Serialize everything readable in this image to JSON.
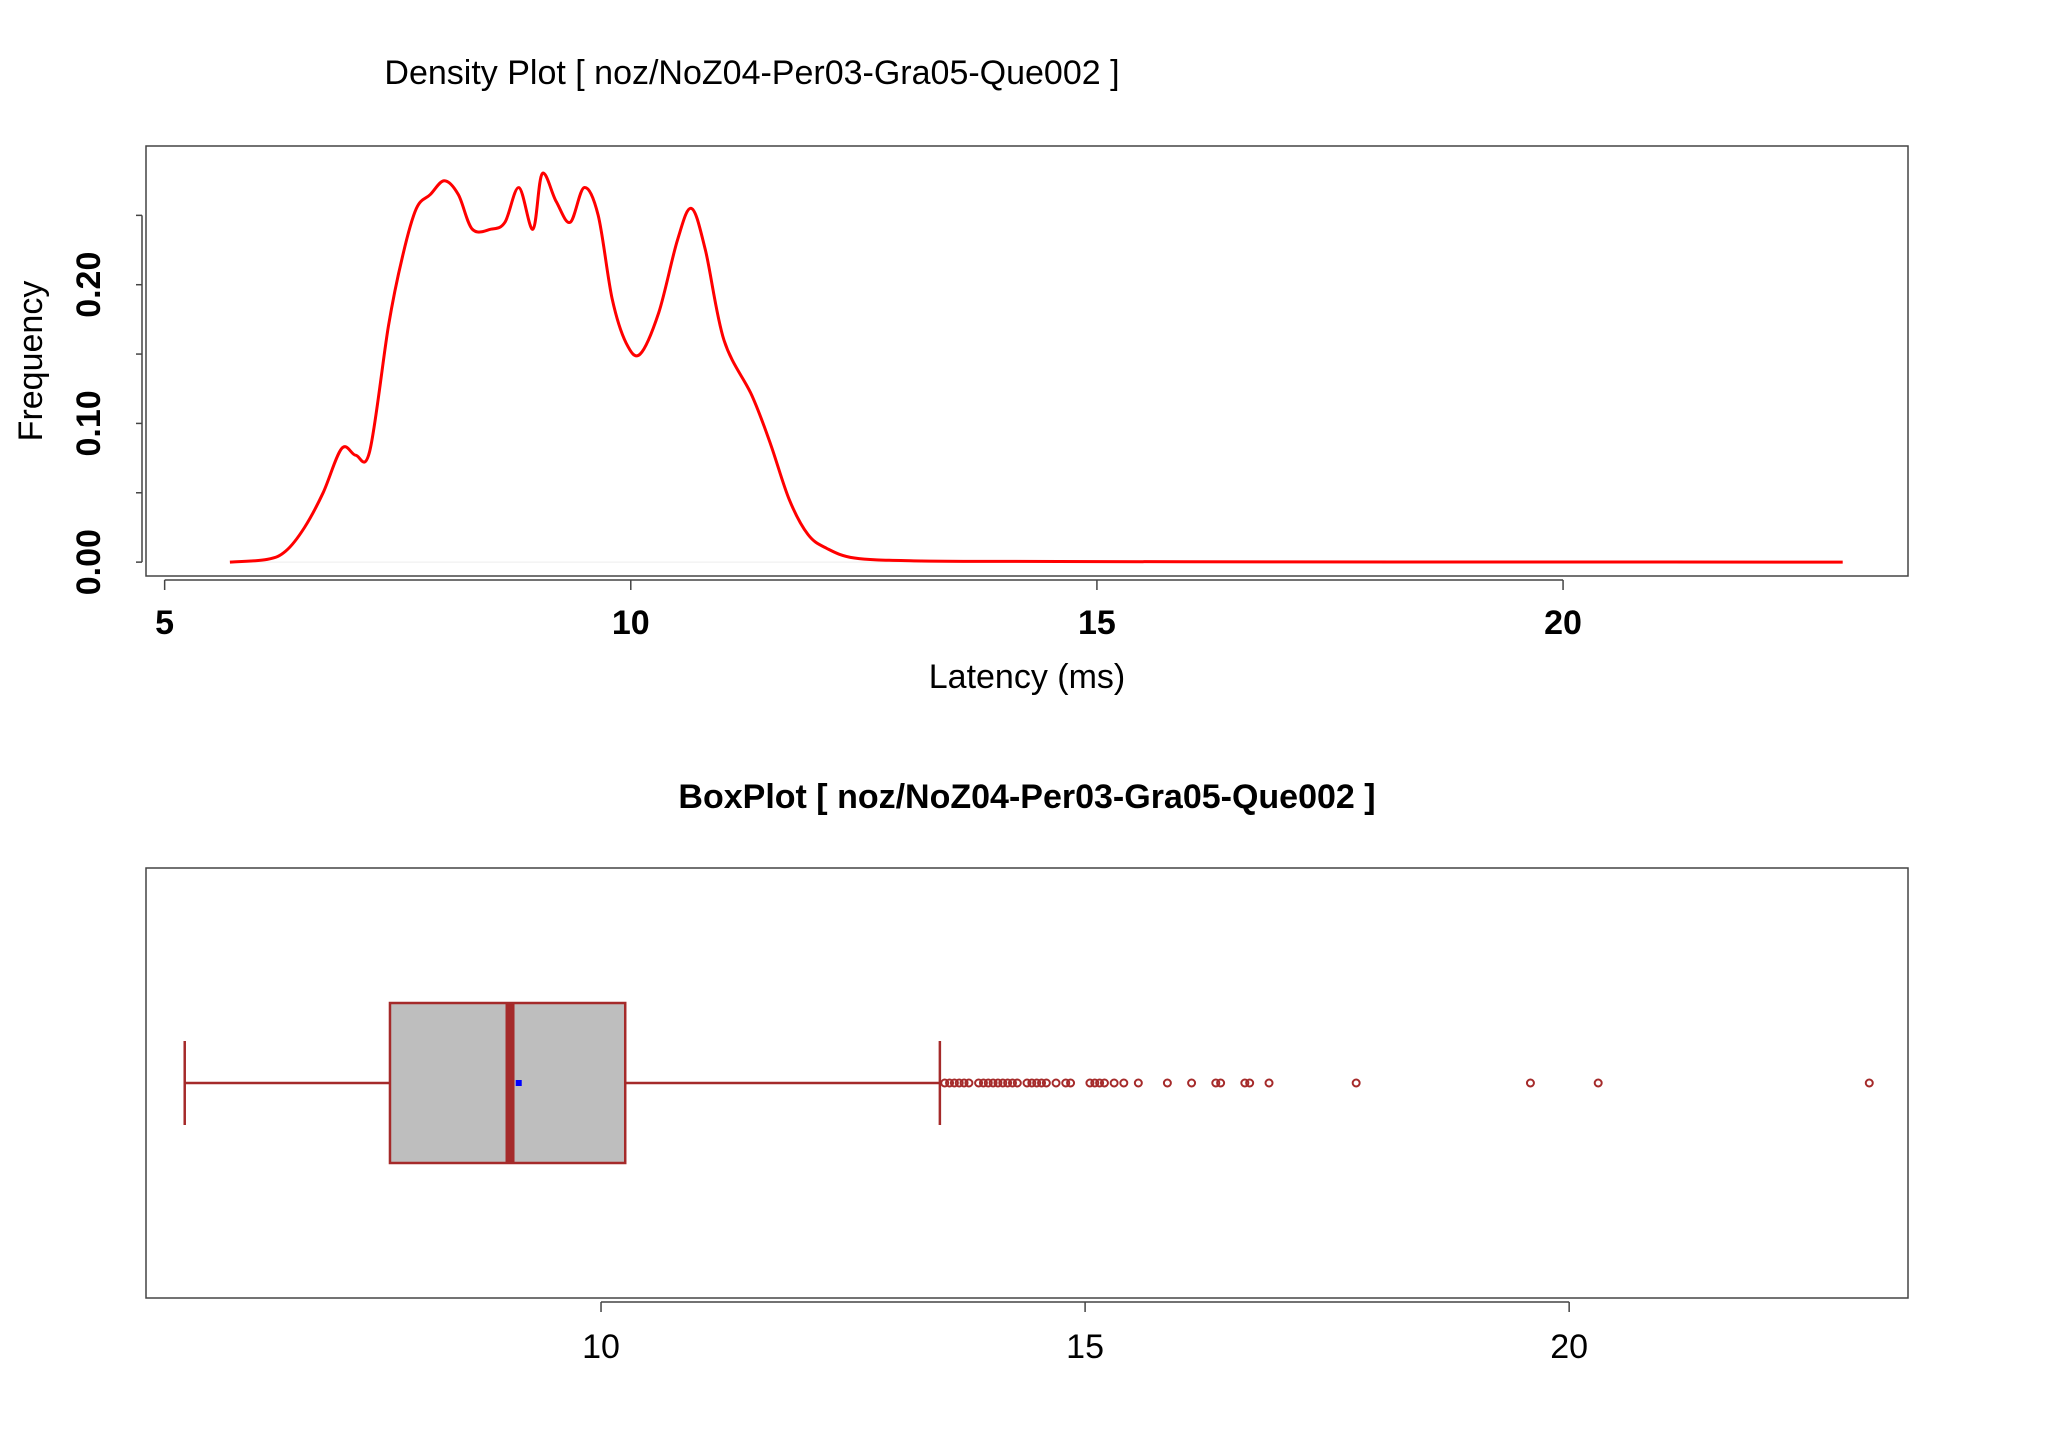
{
  "chart_data": [
    {
      "type": "line",
      "title": "Density Plot [ noz/NoZ04-Per03-Gra05-Que002 ]",
      "xlabel": "Latency (ms)",
      "ylabel": "Frequency",
      "xlim": [
        4.8,
        23.7
      ],
      "ylim": [
        -0.01,
        0.3
      ],
      "x_ticks": [
        5,
        10,
        15,
        20
      ],
      "x_tick_labels": [
        "5",
        "10",
        "15",
        "20"
      ],
      "y_ticks": [
        0.0,
        0.1,
        0.2
      ],
      "y_tick_labels": [
        "0.00",
        "0.10",
        "0.20"
      ],
      "y_minor_ticks": [
        0.05,
        0.15,
        0.25
      ],
      "line_color": "#ff0000",
      "grid": false,
      "series": [
        {
          "x": [
            5.7,
            6.1,
            6.3,
            6.5,
            6.7,
            6.9,
            7.05,
            7.2,
            7.4,
            7.55,
            7.7,
            7.85,
            8.0,
            8.15,
            8.3,
            8.5,
            8.65,
            8.8,
            8.95,
            9.05,
            9.2,
            9.35,
            9.5,
            9.65,
            9.8,
            9.95,
            10.1,
            10.3,
            10.5,
            10.65,
            10.8,
            11.0,
            11.3,
            11.5,
            11.7,
            11.9,
            12.1,
            12.4,
            13.0,
            14.0,
            17.0,
            20.0,
            23.0
          ],
          "y": [
            0.0,
            0.002,
            0.008,
            0.025,
            0.05,
            0.082,
            0.077,
            0.08,
            0.17,
            0.22,
            0.255,
            0.265,
            0.275,
            0.265,
            0.24,
            0.24,
            0.245,
            0.27,
            0.24,
            0.28,
            0.26,
            0.245,
            0.27,
            0.25,
            0.19,
            0.158,
            0.15,
            0.18,
            0.232,
            0.255,
            0.225,
            0.16,
            0.12,
            0.085,
            0.045,
            0.02,
            0.01,
            0.003,
            0.001,
            0.0005,
            0.0002,
            0.0001,
            0.0
          ]
        }
      ]
    },
    {
      "type": "box",
      "title": "BoxPlot [ noz/NoZ04-Per03-Gra05-Que002 ]",
      "xlim": [
        5.3,
        23.5
      ],
      "x_ticks": [
        10,
        15,
        20
      ],
      "x_tick_labels": [
        "10",
        "15",
        "20"
      ],
      "stats": {
        "whisker_low": 5.7,
        "q1": 7.82,
        "median": 9.06,
        "mean": 9.15,
        "q3": 10.25,
        "whisker_high": 13.5
      },
      "outliers": [
        13.55,
        13.6,
        13.65,
        13.7,
        13.75,
        13.8,
        13.9,
        13.95,
        14.0,
        14.05,
        14.1,
        14.15,
        14.2,
        14.25,
        14.3,
        14.4,
        14.45,
        14.5,
        14.55,
        14.6,
        14.7,
        14.8,
        14.85,
        15.05,
        15.1,
        15.15,
        15.2,
        15.3,
        15.4,
        15.55,
        15.85,
        16.1,
        16.35,
        16.4,
        16.65,
        16.7,
        16.9,
        17.8,
        19.6,
        20.3,
        23.1
      ],
      "box_fill": "#bebebe",
      "box_color": "#a52a2a",
      "median_color": "#a52a2a",
      "mean_color": "#0000ff",
      "outlier_color": "#a52a2a"
    }
  ]
}
